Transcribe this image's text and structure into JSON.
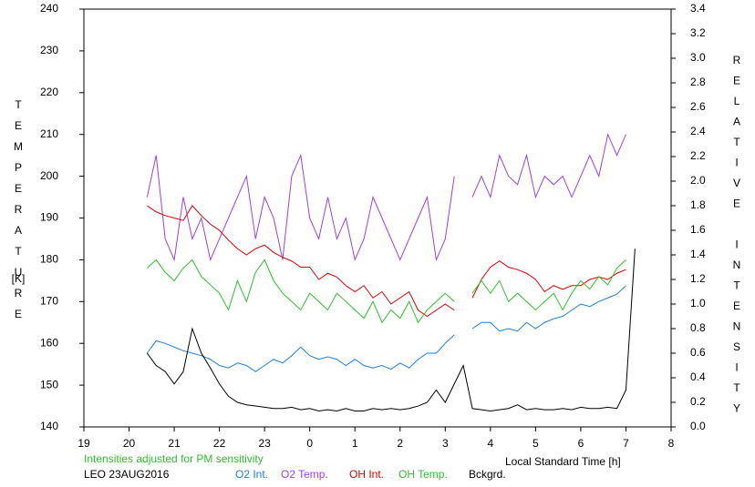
{
  "chart_data": {
    "type": "line",
    "ylabel": "TEMPERATURE",
    "ylabel_unit": "[K]",
    "y2label": "RELATIVE INTENSITY",
    "xlabel": "Local Standard Time [h]",
    "note": "Intensities adjusted for PM sensitivity",
    "station": "LEO 23AUG2016",
    "xlim": [
      19,
      32
    ],
    "xticks": [
      19,
      20,
      21,
      22,
      23,
      {
        "value": 24,
        "label": "0"
      },
      {
        "value": 25,
        "label": "1"
      },
      {
        "value": 26,
        "label": "2"
      },
      {
        "value": 27,
        "label": "3"
      },
      {
        "value": 28,
        "label": "4"
      },
      {
        "value": 29,
        "label": "5"
      },
      {
        "value": 30,
        "label": "6"
      },
      {
        "value": 31,
        "label": "7"
      },
      {
        "value": 32,
        "label": "8"
      }
    ],
    "ylim": [
      140,
      240
    ],
    "yticks": [
      140,
      150,
      160,
      170,
      180,
      190,
      200,
      210,
      220,
      230,
      240
    ],
    "y2lim": [
      0,
      3.4
    ],
    "y2ticks": [
      {
        "value": 0,
        "label": "0.0"
      },
      0.2,
      0.4,
      0.6,
      0.8,
      {
        "value": 1,
        "label": "1.0"
      },
      1.2,
      1.4,
      1.6,
      1.8,
      {
        "value": 2,
        "label": "2.0"
      },
      2.2,
      2.4,
      2.6,
      2.8,
      {
        "value": 3,
        "label": "3.0"
      },
      3.2,
      3.4
    ],
    "x": [
      20.4,
      20.6,
      20.8,
      21.0,
      21.2,
      21.4,
      21.6,
      21.8,
      22.0,
      22.2,
      22.4,
      22.6,
      22.8,
      23.0,
      23.2,
      23.4,
      23.6,
      23.8,
      24.0,
      24.2,
      24.4,
      24.6,
      24.8,
      25.0,
      25.2,
      25.4,
      25.6,
      25.8,
      26.0,
      26.2,
      26.4,
      26.6,
      26.8,
      27.0,
      27.2,
      27.4,
      27.6,
      27.8,
      28.0,
      28.2,
      28.4,
      28.6,
      28.8,
      29.0,
      29.2,
      29.4,
      29.6,
      29.8,
      30.0,
      30.2,
      30.4,
      30.6,
      30.8,
      31.0,
      31.2
    ],
    "series": [
      {
        "name": "O2 Int.",
        "color": "#1e7fd8",
        "axis": "y2",
        "values": [
          0.6,
          0.7,
          0.68,
          0.65,
          0.62,
          0.6,
          0.58,
          0.55,
          0.5,
          0.48,
          0.52,
          0.5,
          0.45,
          0.5,
          0.55,
          0.52,
          0.58,
          0.65,
          0.58,
          0.55,
          0.57,
          0.55,
          0.5,
          0.55,
          0.5,
          0.48,
          0.5,
          0.47,
          0.52,
          0.48,
          0.55,
          0.6,
          0.6,
          0.68,
          0.75,
          null,
          0.8,
          0.85,
          0.85,
          0.78,
          0.8,
          0.78,
          0.85,
          0.8,
          0.85,
          0.88,
          0.9,
          0.95,
          1.0,
          0.98,
          1.02,
          1.05,
          1.08,
          1.15,
          null
        ]
      },
      {
        "name": "O2 Temp.",
        "color": "#a040e0",
        "values": [
          195,
          205,
          185,
          180,
          195,
          185,
          190,
          180,
          185,
          190,
          195,
          200,
          185,
          195,
          190,
          180,
          200,
          205,
          190,
          185,
          195,
          185,
          190,
          180,
          185,
          195,
          190,
          185,
          180,
          185,
          190,
          195,
          180,
          185,
          200,
          null,
          195,
          200,
          195,
          205,
          200,
          198,
          205,
          195,
          200,
          198,
          200,
          195,
          200,
          205,
          200,
          210,
          205,
          210,
          null
        ]
      },
      {
        "name": "OH Int.",
        "color": "#e00000",
        "axis": "y2",
        "values": [
          1.8,
          1.75,
          1.72,
          1.7,
          1.68,
          1.8,
          1.72,
          1.65,
          1.6,
          1.52,
          1.45,
          1.4,
          1.45,
          1.48,
          1.42,
          1.38,
          1.35,
          1.3,
          1.3,
          1.2,
          1.25,
          1.22,
          1.15,
          1.1,
          1.15,
          1.05,
          1.1,
          1.0,
          1.05,
          1.1,
          0.95,
          0.9,
          0.95,
          1.0,
          0.95,
          null,
          1.05,
          1.2,
          1.3,
          1.35,
          1.3,
          1.28,
          1.25,
          1.2,
          1.1,
          1.15,
          1.12,
          1.15,
          1.15,
          1.2,
          1.22,
          1.2,
          1.25,
          1.28,
          null
        ]
      },
      {
        "name": "OH Temp.",
        "color": "#30c030",
        "values": [
          178,
          180,
          177,
          175,
          178,
          180,
          176,
          174,
          172,
          168,
          175,
          170,
          177,
          180,
          175,
          172,
          170,
          168,
          172,
          170,
          168,
          172,
          170,
          168,
          166,
          170,
          165,
          168,
          166,
          170,
          165,
          168,
          170,
          172,
          170,
          null,
          172,
          175,
          172,
          175,
          170,
          172,
          170,
          168,
          170,
          172,
          168,
          172,
          175,
          173,
          176,
          174,
          178,
          180,
          null
        ]
      },
      {
        "name": "Bckgrd.",
        "color": "#000000",
        "axis": "y2",
        "values": [
          0.6,
          0.5,
          0.45,
          0.35,
          0.45,
          0.8,
          0.6,
          0.48,
          0.35,
          0.25,
          0.2,
          0.18,
          0.17,
          0.16,
          0.15,
          0.15,
          0.16,
          0.14,
          0.15,
          0.13,
          0.14,
          0.13,
          0.15,
          0.13,
          0.13,
          0.15,
          0.14,
          0.15,
          0.14,
          0.15,
          0.17,
          0.2,
          0.3,
          0.2,
          0.35,
          0.5,
          0.15,
          0.14,
          0.13,
          0.14,
          0.15,
          0.18,
          0.14,
          0.15,
          0.14,
          0.14,
          0.15,
          0.14,
          0.16,
          0.15,
          0.15,
          0.16,
          0.15,
          0.3,
          1.45
        ]
      }
    ]
  }
}
